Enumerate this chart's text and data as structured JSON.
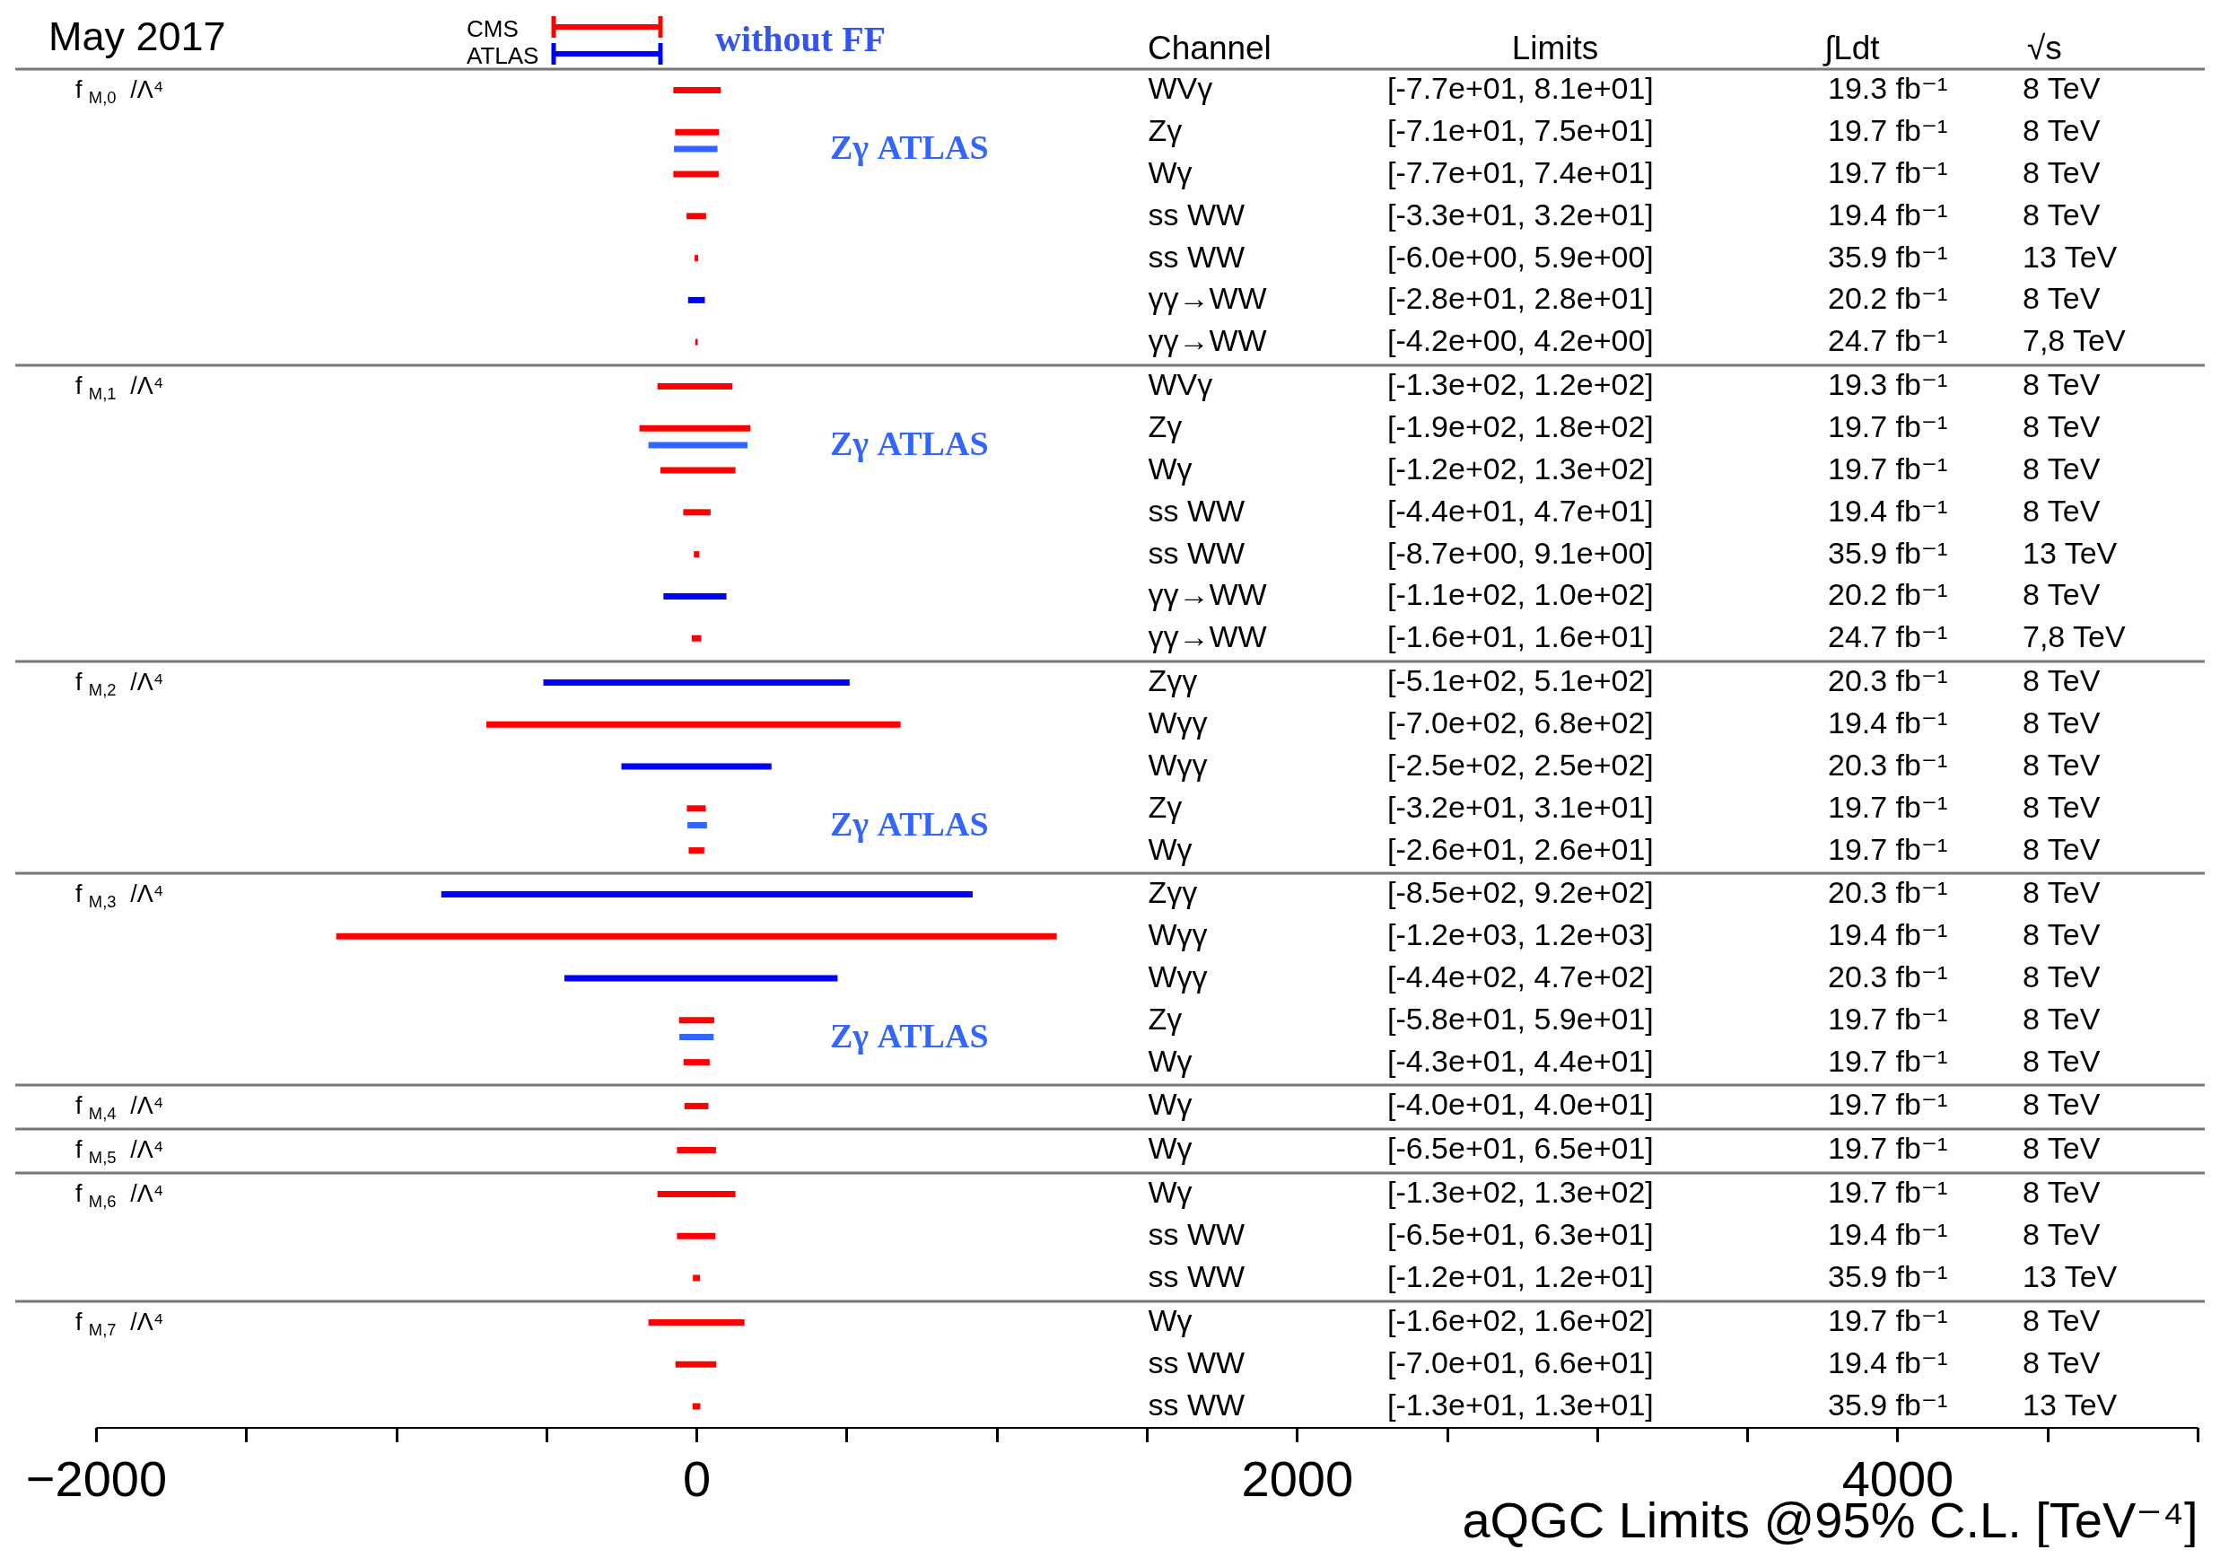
{
  "chart_data": [
    {
      "type": "bar",
      "orientation": "horizontal",
      "title": "May 2017",
      "ylabel": "f$_{M,0}$ /Λ⁴",
      "legend": "top",
      "tick_labels": "y",
      "xlim": [
        -2000,
        5000
      ],
      "categories": [
        "WVγ",
        "Zγ",
        "Wγ",
        "ss WW",
        "ss WW",
        "γγ→WW",
        "γγ→WW"
      ],
      "series": [
        {
          "name": "CMS",
          "color": "#ff0000",
          "base": [
            -77,
            -71,
            -77,
            -33,
            -6.0,
            null,
            -4.2
          ],
          "values": [
            158,
            146,
            151,
            65,
            11.9,
            null,
            8.4
          ]
        },
        {
          "name": "ATLAS",
          "color": "#0000ff",
          "base": [
            null,
            null,
            null,
            null,
            null,
            -28,
            null
          ],
          "values": [
            null,
            null,
            null,
            null,
            null,
            56,
            null
          ]
        },
        {
          "name": "Zγ ATLAS",
          "color": "#3366ff",
          "base": [
            null,
            -75,
            null,
            null,
            null,
            null,
            null
          ],
          "values": [
            null,
            145,
            null,
            null,
            null,
            null,
            null
          ]
        }
      ],
      "annotations": [
        "without FF",
        "Channel",
        "Limits",
        "∫Ldt",
        "√s",
        "[-7.7e+01, 8.1e+01]",
        "19.3 fb⁻¹",
        "8 TeV",
        "[-7.1e+01, 7.5e+01]",
        "19.7 fb⁻¹",
        "8 TeV",
        "[-7.7e+01, 7.4e+01]",
        "19.7 fb⁻¹",
        "8 TeV",
        "[-3.3e+01, 3.2e+01]",
        "19.4 fb⁻¹",
        "8 TeV",
        "[-6.0e+00, 5.9e+00]",
        "35.9 fb⁻¹",
        "13 TeV",
        "[-2.8e+01, 2.8e+01]",
        "20.2 fb⁻¹",
        "8 TeV",
        "[-4.2e+00, 4.2e+00]",
        "24.7 fb⁻¹",
        "7,8 TeV"
      ]
    },
    {
      "type": "bar",
      "orientation": "horizontal",
      "ylabel": "f$_{M,1}$ /Λ⁴",
      "tick_labels": "y",
      "xlim": [
        -2000,
        5000
      ],
      "categories": [
        "WVγ",
        "Zγ",
        "Wγ",
        "ss WW",
        "ss WW",
        "γγ→WW",
        "γγ→WW"
      ],
      "series": [
        {
          "color": "#ff0000",
          "base": [
            -130,
            -190,
            -120,
            -44,
            -8.7,
            null,
            -16
          ],
          "values": [
            250,
            370,
            250,
            91,
            17.8,
            null,
            32
          ]
        },
        {
          "color": "#0000ff",
          "base": [
            null,
            null,
            null,
            null,
            null,
            -110,
            null
          ],
          "values": [
            null,
            null,
            null,
            null,
            null,
            210,
            null
          ]
        },
        {
          "name": "Zγ ATLAS",
          "color": "#3366ff",
          "base": [
            null,
            -160,
            null,
            null,
            null,
            null,
            null
          ],
          "values": [
            null,
            330,
            null,
            null,
            null,
            null,
            null
          ]
        }
      ],
      "annotations": [
        "[-1.3e+02, 1.2e+02]",
        "19.3 fb⁻¹",
        "8 TeV",
        "[-1.9e+02, 1.8e+02]",
        "19.7 fb⁻¹",
        "8 TeV",
        "[-1.2e+02, 1.3e+02]",
        "19.7 fb⁻¹",
        "8 TeV",
        "[-4.4e+01, 4.7e+01]",
        "19.4 fb⁻¹",
        "8 TeV",
        "[-8.7e+00, 9.1e+00]",
        "35.9 fb⁻¹",
        "13 TeV",
        "[-1.1e+02, 1.0e+02]",
        "20.2 fb⁻¹",
        "8 TeV",
        "[-1.6e+01, 1.6e+01]",
        "24.7 fb⁻¹",
        "7,8 TeV"
      ]
    },
    {
      "type": "bar",
      "orientation": "horizontal",
      "ylabel": "f$_{M,2}$ /Λ⁴",
      "tick_labels": "y",
      "xlim": [
        -2000,
        5000
      ],
      "categories": [
        "Zγγ",
        "Wγγ",
        "Wγγ",
        "Zγ",
        "Wγ"
      ],
      "series": [
        {
          "color": "#ff0000",
          "base": [
            null,
            -700,
            null,
            -32,
            -26
          ],
          "values": [
            null,
            1380,
            null,
            63,
            52
          ]
        },
        {
          "color": "#0000ff",
          "base": [
            -510,
            null,
            -250,
            null,
            null
          ],
          "values": [
            1020,
            null,
            500,
            null,
            null
          ]
        },
        {
          "name": "Zγ ATLAS",
          "color": "#3366ff",
          "base": [
            null,
            null,
            null,
            -30,
            null
          ],
          "values": [
            null,
            null,
            null,
            65,
            null
          ]
        }
      ],
      "annotations": [
        "[-5.1e+02, 5.1e+02]",
        "20.3 fb⁻¹",
        "8 TeV",
        "[-7.0e+02, 6.8e+02]",
        "19.4 fb⁻¹",
        "8 TeV",
        "[-2.5e+02, 2.5e+02]",
        "20.3 fb⁻¹",
        "8 TeV",
        "[-3.2e+01, 3.1e+01]",
        "19.7 fb⁻¹",
        "8 TeV",
        "[-2.6e+01, 2.6e+01]",
        "19.7 fb⁻¹",
        "8 TeV"
      ]
    },
    {
      "type": "bar",
      "orientation": "horizontal",
      "ylabel": "f$_{M,3}$ /Λ⁴",
      "tick_labels": "y",
      "xlim": [
        -2000,
        5000
      ],
      "categories": [
        "Zγγ",
        "Wγγ",
        "Wγγ",
        "Zγ",
        "Wγ"
      ],
      "series": [
        {
          "color": "#ff0000",
          "base": [
            null,
            -1200,
            null,
            -58,
            -43
          ],
          "values": [
            null,
            2400,
            null,
            117,
            87
          ]
        },
        {
          "color": "#0000ff",
          "base": [
            -850,
            null,
            -440,
            null,
            null
          ],
          "values": [
            1770,
            null,
            910,
            null,
            null
          ]
        },
        {
          "name": "Zγ ATLAS",
          "color": "#3366ff",
          "base": [
            null,
            null,
            null,
            -57,
            null
          ],
          "values": [
            null,
            null,
            null,
            114,
            null
          ]
        }
      ],
      "annotations": [
        "[-8.5e+02, 9.2e+02]",
        "20.3 fb⁻¹",
        "8 TeV",
        "[-1.2e+03, 1.2e+03]",
        "19.4 fb⁻¹",
        "8 TeV",
        "[-4.4e+02, 4.7e+02]",
        "20.3 fb⁻¹",
        "8 TeV",
        "[-5.8e+01, 5.9e+01]",
        "19.7 fb⁻¹",
        "8 TeV",
        "[-4.3e+01, 4.4e+01]",
        "19.7 fb⁻¹",
        "8 TeV"
      ]
    },
    {
      "type": "bar",
      "orientation": "horizontal",
      "ylabel": "f$_{M,4}$ /Λ⁴",
      "tick_labels": "y",
      "xlim": [
        -2000,
        5000
      ],
      "categories": [
        "Wγ"
      ],
      "series": [
        {
          "color": "#ff0000",
          "base": [
            -40
          ],
          "values": [
            80
          ]
        }
      ],
      "annotations": [
        "[-4.0e+01, 4.0e+01]",
        "19.7 fb⁻¹",
        "8 TeV"
      ]
    },
    {
      "type": "bar",
      "orientation": "horizontal",
      "ylabel": "f$_{M,5}$ /Λ⁴",
      "tick_labels": "y",
      "xlim": [
        -2000,
        5000
      ],
      "categories": [
        "Wγ"
      ],
      "series": [
        {
          "color": "#ff0000",
          "base": [
            -65
          ],
          "values": [
            130
          ]
        }
      ],
      "annotations": [
        "[-6.5e+01, 6.5e+01]",
        "19.7 fb⁻¹",
        "8 TeV"
      ]
    },
    {
      "type": "bar",
      "orientation": "horizontal",
      "ylabel": "f$_{M,6}$ /Λ⁴",
      "tick_labels": "y",
      "xlim": [
        -2000,
        5000
      ],
      "categories": [
        "Wγ",
        "ss WW",
        "ss WW"
      ],
      "series": [
        {
          "color": "#ff0000",
          "base": [
            -130,
            -65,
            -12
          ],
          "values": [
            260,
            128,
            24
          ]
        }
      ],
      "annotations": [
        "[-1.3e+02, 1.3e+02]",
        "19.7 fb⁻¹",
        "8 TeV",
        "[-6.5e+01, 6.3e+01]",
        "19.4 fb⁻¹",
        "8 TeV",
        "[-1.2e+01, 1.2e+01]",
        "35.9 fb⁻¹",
        "13 TeV"
      ]
    },
    {
      "type": "bar",
      "orientation": "horizontal",
      "ylabel": "f$_{M,7}$ /Λ⁴",
      "xlabel": "aQGC Limits @95% C.L. [TeV⁻⁴]",
      "xlim": [
        -2000,
        5000
      ],
      "xticks": [
        {
          "value": -2000,
          "label": "−2000"
        },
        {
          "value": -1500,
          "label": null
        },
        {
          "value": -1000,
          "label": null
        },
        {
          "value": -500,
          "label": null
        },
        0,
        {
          "value": 500,
          "label": null
        },
        {
          "value": 1000,
          "label": null
        },
        {
          "value": 1500,
          "label": null
        },
        2000,
        {
          "value": 2500,
          "label": null
        },
        {
          "value": 3000,
          "label": null
        },
        {
          "value": 3500,
          "label": null
        },
        4000,
        {
          "value": 4500,
          "label": null
        },
        {
          "value": 5000,
          "label": null
        }
      ],
      "categories": [
        "Wγ",
        "ss WW",
        "ss WW"
      ],
      "series": [
        {
          "color": "#ff0000",
          "base": [
            -160,
            -70,
            -13
          ],
          "values": [
            320,
            136,
            26
          ]
        }
      ],
      "annotations": [
        "[-1.6e+02, 1.6e+02]",
        "19.7 fb⁻¹",
        "8 TeV",
        "[-7.0e+01, 6.6e+01]",
        "19.4 fb⁻¹",
        "8 TeV",
        "[-1.3e+01, 1.3e+01]",
        "35.9 fb⁻¹",
        "13 TeV"
      ]
    }
  ]
}
